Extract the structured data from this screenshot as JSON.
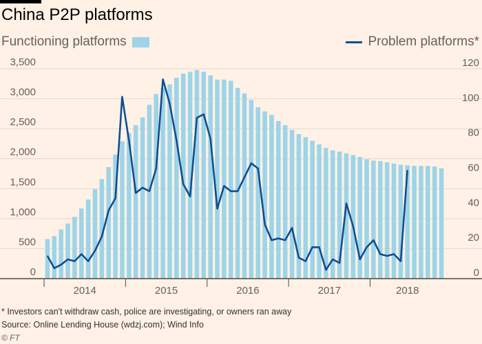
{
  "header": {
    "title": "China P2P platforms"
  },
  "legend": {
    "bars_label": "Functioning platforms",
    "line_label": "Problem platforms*"
  },
  "colors": {
    "bar": "#9dd4e8",
    "line": "#0f4d92",
    "grid": "#e0d8d0",
    "axis": "#66605c"
  },
  "footnotes": {
    "note": "* Investors can't withdraw cash, police are investigating, or owners ran away",
    "source": "Source: Online Lending House (wdzj.com); Wind Info",
    "credit": "© FT"
  },
  "chart_data": {
    "type": "bar+line",
    "title": "China P2P platforms",
    "x_tick_labels": [
      "2014",
      "2015",
      "2016",
      "2017",
      "2018"
    ],
    "x_tick_month_index": [
      6,
      18,
      30,
      42,
      54
    ],
    "x_year_boundaries": [
      0,
      12,
      24,
      36,
      48
    ],
    "left_axis": {
      "label": "Functioning platforms",
      "ylim": [
        0,
        3500
      ],
      "ticks": [
        0,
        500,
        1000,
        1500,
        2000,
        2500,
        3000,
        3500
      ],
      "tick_labels": [
        "0",
        "500",
        "1,000",
        "1,500",
        "2,000",
        "2,500",
        "3,000",
        "3,500"
      ]
    },
    "right_axis": {
      "label": "Problem platforms*",
      "ylim": [
        0,
        120
      ],
      "ticks": [
        0,
        20,
        40,
        60,
        80,
        100,
        120
      ],
      "tick_labels": [
        "0",
        "20",
        "40",
        "60",
        "80",
        "100",
        "120"
      ]
    },
    "grid": true,
    "series": [
      {
        "name": "Functioning platforms",
        "kind": "bar",
        "axis": "left",
        "values": [
          660,
          710,
          820,
          920,
          1030,
          1170,
          1320,
          1490,
          1660,
          1860,
          2070,
          2290,
          2430,
          2560,
          2690,
          2900,
          3080,
          3180,
          3240,
          3350,
          3420,
          3450,
          3480,
          3450,
          3390,
          3320,
          3320,
          3300,
          3180,
          3090,
          2980,
          2860,
          2790,
          2730,
          2630,
          2560,
          2480,
          2410,
          2360,
          2300,
          2240,
          2180,
          2140,
          2120,
          2090,
          2060,
          2030,
          1990,
          1970,
          1960,
          1940,
          1920,
          1900,
          1890,
          1880,
          1880,
          1880,
          1870,
          1840
        ]
      },
      {
        "name": "Problem platforms*",
        "kind": "line",
        "axis": "right",
        "values": [
          13,
          6,
          8,
          11,
          10,
          14,
          10,
          16,
          24,
          39,
          46,
          104,
          79,
          49,
          52,
          50,
          63,
          114,
          100,
          79,
          54,
          47,
          92,
          94,
          80,
          40,
          53,
          50,
          50,
          58,
          66,
          63,
          31,
          22,
          23,
          22,
          29,
          12,
          10,
          18,
          18,
          5,
          11,
          9,
          43,
          30,
          11,
          18,
          22,
          14,
          13,
          14,
          10,
          62
        ]
      }
    ]
  }
}
